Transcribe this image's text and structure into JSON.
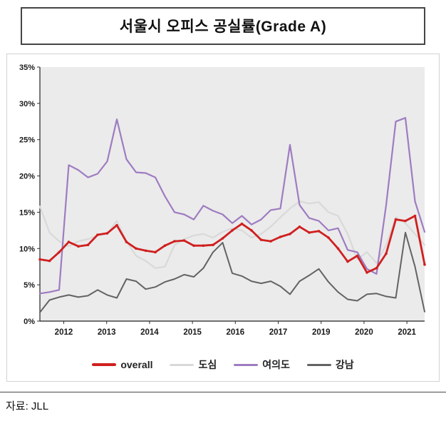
{
  "header": {
    "title": "서울시 오피스 공실률(Grade A)"
  },
  "footer": {
    "source": "자료: JLL"
  },
  "chart_data": {
    "type": "line",
    "title": "서울시 오피스 공실률(Grade A)",
    "ylabel": "",
    "xlabel": "",
    "ylim": [
      0,
      35
    ],
    "grid": false,
    "legend_position": "bottom",
    "plot_bg": "#ebebeb",
    "ytick_labels": [
      "0%",
      "5%",
      "10%",
      "15%",
      "20%",
      "25%",
      "30%",
      "35%"
    ],
    "xtick_labels": [
      "2012",
      "2013",
      "2014",
      "2015",
      "2016",
      "2017",
      "2019",
      "2020",
      "2021"
    ],
    "x": [
      "2011Q4",
      "2012Q1",
      "2012Q2",
      "2012Q3",
      "2012Q4",
      "2013Q1",
      "2013Q2",
      "2013Q3",
      "2013Q4",
      "2014Q1",
      "2014Q2",
      "2014Q3",
      "2014Q4",
      "2015Q1",
      "2015Q2",
      "2015Q3",
      "2015Q4",
      "2016Q1",
      "2016Q2",
      "2016Q3",
      "2016Q4",
      "2017Q1",
      "2017Q2",
      "2017Q3",
      "2017Q4",
      "2018Q1",
      "2018Q2",
      "2018Q3",
      "2018Q4",
      "2019Q1",
      "2019Q2",
      "2019Q3",
      "2019Q4",
      "2020Q1",
      "2020Q2",
      "2020Q3",
      "2020Q4",
      "2021Q1",
      "2021Q2",
      "2021Q3",
      "2021Q4"
    ],
    "series": [
      {
        "name": "overall",
        "color": "#d01f1f",
        "values": [
          8.5,
          8.3,
          9.5,
          10.9,
          10.3,
          10.5,
          11.9,
          12.1,
          13.2,
          10.9,
          10.0,
          9.7,
          9.5,
          10.4,
          11.0,
          11.1,
          10.4,
          10.4,
          10.5,
          11.4,
          12.5,
          13.4,
          12.5,
          11.2,
          11.0,
          11.6,
          12.0,
          13.0,
          12.2,
          12.4,
          11.5,
          10.0,
          8.2,
          9.0,
          6.7,
          7.3,
          9.3,
          14.0,
          13.8,
          14.5,
          7.8
        ]
      },
      {
        "name": "도심",
        "color": "#d9d9d9",
        "values": [
          15.8,
          12.2,
          11.0,
          10.3,
          11.0,
          11.3,
          11.8,
          12.0,
          13.8,
          11.0,
          9.0,
          8.3,
          7.3,
          7.5,
          10.5,
          11.3,
          11.8,
          12.0,
          11.5,
          12.3,
          12.8,
          12.5,
          11.5,
          12.0,
          13.0,
          14.3,
          15.5,
          16.5,
          16.2,
          16.4,
          15.0,
          14.5,
          12.0,
          8.5,
          9.5,
          8.0,
          10.5,
          14.3,
          13.5,
          12.0,
          10.5
        ]
      },
      {
        "name": "여의도",
        "color": "#9e7cc1",
        "values": [
          3.8,
          4.0,
          4.3,
          21.5,
          20.8,
          19.8,
          20.3,
          22.0,
          27.8,
          22.3,
          20.5,
          20.4,
          19.8,
          17.2,
          15.0,
          14.7,
          14.0,
          15.9,
          15.2,
          14.7,
          13.5,
          14.5,
          13.3,
          14.0,
          15.3,
          15.5,
          24.3,
          16.0,
          14.2,
          13.8,
          12.5,
          12.8,
          9.8,
          9.5,
          7.2,
          6.5,
          16.0,
          27.5,
          28.0,
          16.5,
          12.3
        ]
      },
      {
        "name": "강남",
        "color": "#636363",
        "values": [
          1.2,
          2.9,
          3.3,
          3.6,
          3.3,
          3.5,
          4.3,
          3.6,
          3.2,
          5.8,
          5.5,
          4.4,
          4.7,
          5.4,
          5.8,
          6.4,
          6.1,
          7.3,
          9.5,
          10.8,
          6.6,
          6.2,
          5.5,
          5.2,
          5.5,
          4.8,
          3.7,
          5.5,
          6.3,
          7.2,
          5.4,
          4.0,
          3.0,
          2.8,
          3.7,
          3.8,
          3.4,
          3.2,
          12.2,
          7.5,
          1.3
        ]
      }
    ]
  }
}
